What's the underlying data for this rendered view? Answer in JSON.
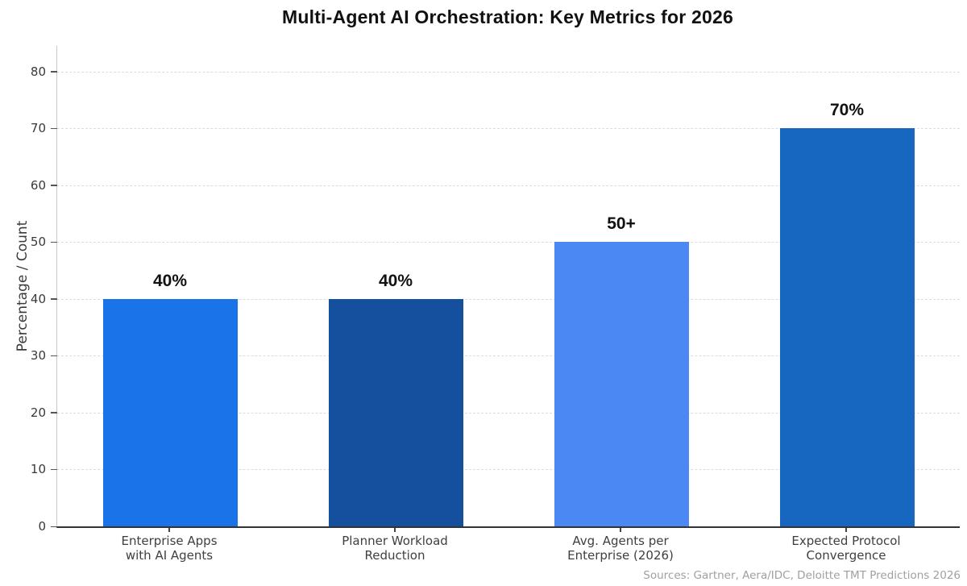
{
  "chart_data": {
    "type": "bar",
    "title": "Multi-Agent AI Orchestration: Key Metrics for 2026",
    "xlabel": "",
    "ylabel": "Percentage / Count",
    "ylim": [
      0,
      84.5
    ],
    "yticks": [
      0,
      10,
      20,
      30,
      40,
      50,
      60,
      70,
      80
    ],
    "grid": "horizontal-dashed",
    "legend": "none",
    "categories": [
      "Enterprise Apps\nwith AI Agents",
      "Planner Workload\nReduction",
      "Avg. Agents per\nEnterprise (2026)",
      "Expected Protocol\nConvergence"
    ],
    "values": [
      40,
      40,
      50,
      70
    ],
    "value_labels": [
      "40%",
      "40%",
      "50+",
      "70%"
    ],
    "bar_colors": [
      "#1a73e8",
      "#14509e",
      "#4b88f4",
      "#1766c0"
    ],
    "source": "Sources: Gartner, Aera/IDC, Deloitte TMT Predictions 2026"
  }
}
